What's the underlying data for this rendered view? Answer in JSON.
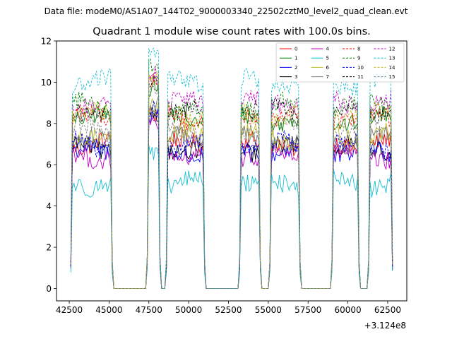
{
  "figure": {
    "suptitle": "Data file: modeM0/AS1A07_144T02_9000003340_22502cztM0_level2_quad_clean.evt"
  },
  "chart_data": {
    "type": "line",
    "title": "Quadrant 1 module wise count rates with 100.0s bins.",
    "xlabel": "",
    "ylabel": "",
    "x_offset_label": "+3.124e8",
    "xlim": [
      41700,
      63700
    ],
    "ylim": [
      -0.6,
      12.0
    ],
    "x_ticks": [
      42500,
      45000,
      47500,
      50000,
      52500,
      55000,
      57500,
      60000,
      62500
    ],
    "x_tick_labels": [
      "42500",
      "45000",
      "47500",
      "50000",
      "52500",
      "55000",
      "57500",
      "60000",
      "62500"
    ],
    "y_ticks": [
      0,
      2,
      4,
      6,
      8,
      10,
      12
    ],
    "y_tick_labels": [
      "0",
      "2",
      "4",
      "6",
      "8",
      "10",
      "12"
    ],
    "bin_size_s": 100,
    "x_start": 42600,
    "x_end": 62800,
    "on_intervals": [
      [
        42600,
        45200
      ],
      [
        47400,
        48200
      ],
      [
        48600,
        51000
      ],
      [
        53200,
        54500
      ],
      [
        55100,
        57000
      ],
      [
        59000,
        60700
      ],
      [
        61300,
        62800
      ]
    ],
    "legend": {
      "position": "top-right",
      "ncol": 4
    },
    "series": [
      {
        "name": "0",
        "color": "#ff0000",
        "dash": "solid",
        "level": 7.0
      },
      {
        "name": "1",
        "color": "#008000",
        "dash": "solid",
        "level": 8.2
      },
      {
        "name": "2",
        "color": "#0000ff",
        "dash": "solid",
        "level": 6.6
      },
      {
        "name": "3",
        "color": "#000000",
        "dash": "solid",
        "level": 6.8
      },
      {
        "name": "4",
        "color": "#bf00bf",
        "dash": "solid",
        "level": 6.4
      },
      {
        "name": "5",
        "color": "#17becf",
        "dash": "solid",
        "level": 5.1
      },
      {
        "name": "6",
        "color": "#bcbd22",
        "dash": "solid",
        "level": 7.4
      },
      {
        "name": "7",
        "color": "#808080",
        "dash": "solid",
        "level": 7.2
      },
      {
        "name": "8",
        "color": "#ff0000",
        "dash": "dashed",
        "level": 8.3
      },
      {
        "name": "9",
        "color": "#008000",
        "dash": "dashed",
        "level": 8.9
      },
      {
        "name": "10",
        "color": "#0000ff",
        "dash": "dashed",
        "level": 7.0
      },
      {
        "name": "11",
        "color": "#000000",
        "dash": "dashed",
        "level": 8.6
      },
      {
        "name": "12",
        "color": "#bf00bf",
        "dash": "dashed",
        "level": 9.0
      },
      {
        "name": "13",
        "color": "#17becf",
        "dash": "dashed",
        "level": 10.0
      },
      {
        "name": "14",
        "color": "#bcbd22",
        "dash": "dashed",
        "level": 8.4
      },
      {
        "name": "15",
        "color": "#808080",
        "dash": "dashed",
        "level": 7.7
      }
    ]
  }
}
